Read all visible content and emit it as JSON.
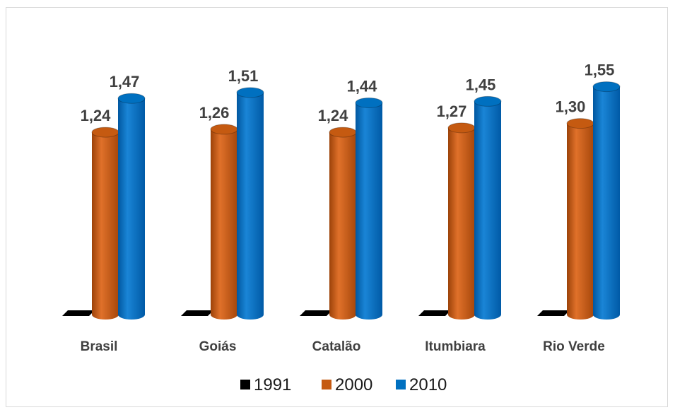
{
  "chart_data": {
    "type": "bar",
    "categories": [
      "Brasil",
      "Goiás",
      "Catalão",
      "Itumbiara",
      "Rio Verde"
    ],
    "series": [
      {
        "name": "1991",
        "color": "#000000",
        "values": [
          0,
          0,
          0,
          0,
          0
        ],
        "labels": [
          "",
          "",
          "",
          "",
          ""
        ]
      },
      {
        "name": "2000",
        "color": "#c55a11",
        "values": [
          1.24,
          1.26,
          1.24,
          1.27,
          1.3
        ],
        "labels": [
          "1,24",
          "1,26",
          "1,24",
          "1,27",
          "1,30"
        ]
      },
      {
        "name": "2010",
        "color": "#0070c0",
        "values": [
          1.47,
          1.51,
          1.44,
          1.45,
          1.55
        ],
        "labels": [
          "1,47",
          "1,51",
          "1,44",
          "1,45",
          "1,55"
        ]
      }
    ],
    "ylim": [
      0,
      1.8
    ],
    "grid": false,
    "legend_position": "bottom",
    "bar_shape": "cylinder-3d"
  }
}
